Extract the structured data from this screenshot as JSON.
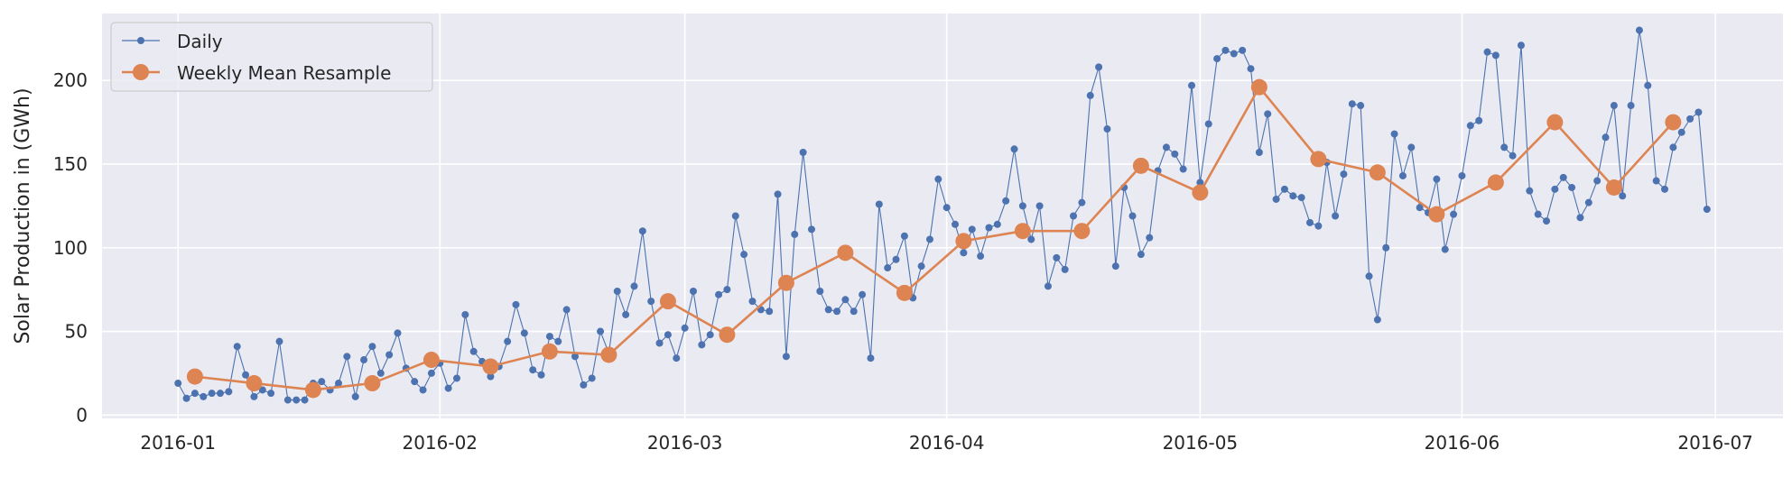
{
  "chart_data": {
    "type": "line",
    "title": "",
    "xlabel": "",
    "ylabel": "Solar Production in (GWh)",
    "xlim": [
      "2015-12-23",
      "2016-07-09"
    ],
    "ylim": [
      -2,
      240
    ],
    "grid": true,
    "legend_position": "top-left",
    "x_ticks": [
      {
        "date": "2016-01-01",
        "label": "2016-01"
      },
      {
        "date": "2016-02-01",
        "label": "2016-02"
      },
      {
        "date": "2016-03-01",
        "label": "2016-03"
      },
      {
        "date": "2016-04-01",
        "label": "2016-04"
      },
      {
        "date": "2016-05-01",
        "label": "2016-05"
      },
      {
        "date": "2016-06-01",
        "label": "2016-06"
      },
      {
        "date": "2016-07-01",
        "label": "2016-07"
      }
    ],
    "y_ticks": [
      0,
      50,
      100,
      150,
      200
    ],
    "colors": {
      "background": "#eaeaf2",
      "grid": "#ffffff",
      "daily": "#4c72b0",
      "weekly": "#dd8452"
    },
    "series": [
      {
        "name": "Daily",
        "frequency": "daily",
        "values_by_month": {
          "2016-01": [
            19,
            10,
            13,
            11,
            13,
            13,
            14,
            41,
            24,
            11,
            15,
            13,
            44,
            9,
            9,
            9,
            19,
            20,
            15,
            19,
            35,
            11,
            33,
            41,
            25,
            36,
            49,
            28,
            20,
            15,
            25
          ],
          "2016-02": [
            31,
            16,
            22,
            60,
            38,
            32,
            23,
            29,
            44,
            66,
            49,
            27,
            24,
            47,
            44,
            63,
            35,
            18,
            22,
            50,
            37,
            74,
            60,
            77,
            110,
            68,
            43,
            48,
            34
          ],
          "2016-03": [
            52,
            74,
            42,
            48,
            72,
            75,
            119,
            96,
            68,
            63,
            62,
            132,
            35,
            108,
            157,
            111,
            74,
            63,
            62,
            69,
            62,
            72,
            34,
            126,
            88,
            93,
            107,
            70,
            89,
            105,
            141
          ],
          "2016-04": [
            124,
            114,
            97,
            111,
            95,
            112,
            114,
            128,
            159,
            125,
            105,
            125,
            77,
            94,
            87,
            119,
            127,
            191,
            208,
            171,
            89,
            136,
            119,
            96,
            106,
            146,
            160,
            156,
            147,
            197
          ],
          "2016-05": [
            139,
            174,
            213,
            218,
            216,
            218,
            207,
            157,
            180,
            129,
            135,
            131,
            130,
            115,
            113,
            151,
            119,
            144,
            186,
            185,
            83,
            57,
            100,
            168,
            143,
            160,
            124,
            121,
            141,
            99,
            120
          ],
          "2016-06": [
            143,
            173,
            176,
            217,
            215,
            160,
            155,
            221,
            134,
            120,
            116,
            135,
            142,
            136,
            118,
            127,
            140,
            166,
            185,
            131,
            185,
            230,
            197,
            140,
            135,
            160,
            169,
            177,
            181,
            123
          ]
        }
      },
      {
        "name": "Weekly Mean Resample",
        "frequency": "weekly",
        "x": [
          "2016-01-03",
          "2016-01-10",
          "2016-01-17",
          "2016-01-24",
          "2016-01-31",
          "2016-02-07",
          "2016-02-14",
          "2016-02-21",
          "2016-02-28",
          "2016-03-06",
          "2016-03-13",
          "2016-03-20",
          "2016-03-27",
          "2016-04-03",
          "2016-04-10",
          "2016-04-17",
          "2016-04-24",
          "2016-05-01",
          "2016-05-08",
          "2016-05-15",
          "2016-05-22",
          "2016-05-29",
          "2016-06-05",
          "2016-06-12",
          "2016-06-19",
          "2016-06-26"
        ],
        "values": [
          23,
          19,
          15,
          19,
          33,
          29,
          38,
          36,
          68,
          48,
          79,
          97,
          73,
          104,
          110,
          110,
          149,
          133,
          196,
          153,
          145,
          120,
          139,
          175,
          136,
          175
        ]
      }
    ]
  }
}
